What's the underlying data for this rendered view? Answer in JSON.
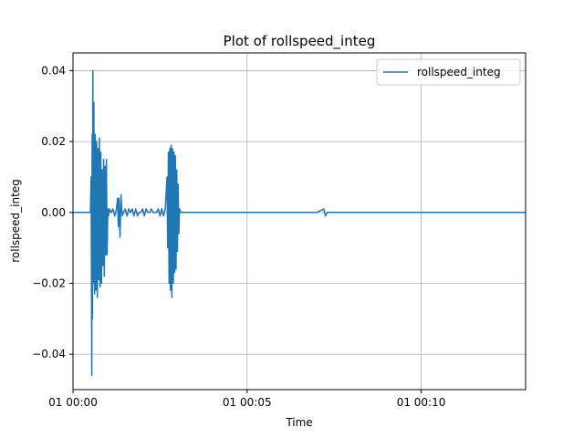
{
  "chart_data": {
    "type": "line",
    "title": "Plot of rollspeed_integ",
    "xlabel": "Time",
    "ylabel": "rollspeed_integ",
    "x_unit": "minutes after 01 00:00",
    "xlim": [
      0,
      13.0
    ],
    "ylim": [
      -0.05,
      0.045
    ],
    "x_ticks": [
      {
        "value": 0,
        "label": "01 00:00"
      },
      {
        "value": 5,
        "label": "01 00:05"
      },
      {
        "value": 10,
        "label": "01 00:10"
      }
    ],
    "y_ticks": [
      {
        "value": 0.04,
        "label": "0.04"
      },
      {
        "value": 0.02,
        "label": "0.02"
      },
      {
        "value": 0.0,
        "label": "0.00"
      },
      {
        "value": -0.02,
        "label": "−0.02"
      },
      {
        "value": -0.04,
        "label": "−0.04"
      }
    ],
    "grid": true,
    "legend_position": "top-right",
    "series": [
      {
        "name": "rollspeed_integ",
        "color": "#1f77b4",
        "x": [
          0.0,
          0.2,
          0.4,
          0.5,
          0.52,
          0.54,
          0.55,
          0.56,
          0.57,
          0.58,
          0.6,
          0.62,
          0.64,
          0.66,
          0.68,
          0.7,
          0.72,
          0.74,
          0.76,
          0.78,
          0.8,
          0.82,
          0.84,
          0.86,
          0.88,
          0.9,
          0.92,
          0.94,
          0.96,
          0.98,
          1.0,
          1.02,
          1.05,
          1.1,
          1.15,
          1.2,
          1.25,
          1.28,
          1.3,
          1.32,
          1.35,
          1.38,
          1.4,
          1.42,
          1.45,
          1.5,
          1.55,
          1.6,
          1.65,
          1.7,
          1.75,
          1.8,
          1.85,
          1.9,
          1.95,
          2.0,
          2.05,
          2.1,
          2.15,
          2.2,
          2.25,
          2.3,
          2.35,
          2.4,
          2.45,
          2.5,
          2.55,
          2.6,
          2.65,
          2.7,
          2.72,
          2.74,
          2.76,
          2.78,
          2.8,
          2.82,
          2.84,
          2.86,
          2.88,
          2.9,
          2.92,
          2.94,
          2.96,
          2.98,
          3.0,
          3.02,
          3.04,
          3.06,
          3.1,
          3.2,
          3.5,
          4.0,
          4.5,
          5.0,
          5.5,
          6.0,
          6.5,
          7.0,
          7.2,
          7.25,
          7.3,
          7.5,
          8.0,
          8.5,
          9.0,
          9.5,
          10.0,
          10.5,
          11.0,
          11.5,
          12.0,
          12.5,
          13.0
        ],
        "values": [
          0.0,
          0.0,
          0.0,
          0.0,
          0.01,
          -0.046,
          0.022,
          -0.03,
          0.04,
          -0.02,
          0.031,
          -0.023,
          0.022,
          -0.022,
          0.02,
          -0.024,
          0.018,
          -0.019,
          0.021,
          -0.021,
          0.017,
          -0.02,
          0.012,
          -0.015,
          0.015,
          -0.018,
          0.013,
          -0.012,
          0.015,
          -0.012,
          0.001,
          -0.001,
          0.001,
          0.0,
          0.001,
          -0.001,
          0.001,
          0.004,
          -0.004,
          0.004,
          -0.007,
          0.005,
          0.001,
          -0.001,
          0.0,
          0.001,
          -0.001,
          0.001,
          0.0,
          0.001,
          -0.001,
          0.001,
          -0.001,
          0.0,
          0.0,
          0.001,
          -0.001,
          0.001,
          0.0,
          0.0,
          0.001,
          0.0,
          0.0,
          0.0,
          0.001,
          -0.001,
          0.001,
          -0.001,
          0.001,
          0.01,
          -0.01,
          0.017,
          -0.02,
          0.018,
          -0.022,
          0.019,
          -0.024,
          0.018,
          -0.02,
          0.017,
          -0.017,
          0.016,
          -0.016,
          0.012,
          -0.011,
          0.008,
          -0.006,
          0.001,
          0.0,
          0.0,
          0.0,
          0.0,
          0.0,
          0.0,
          0.0,
          0.0,
          0.0,
          0.0,
          0.001,
          -0.001,
          0.0,
          0.0,
          0.0,
          0.0,
          0.0,
          0.0,
          0.0,
          0.0,
          0.0,
          0.0,
          0.0,
          0.0,
          0.0
        ]
      }
    ]
  }
}
